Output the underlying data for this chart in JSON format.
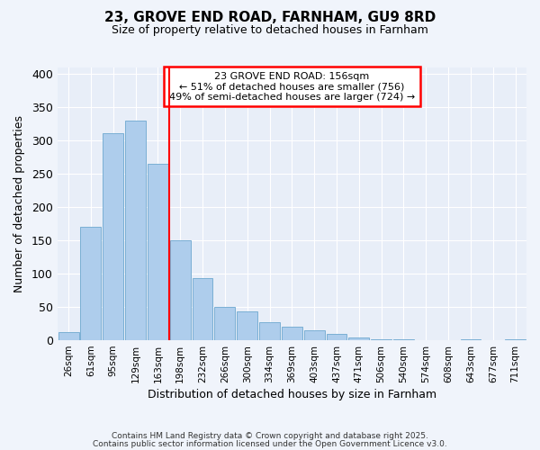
{
  "title": "23, GROVE END ROAD, FARNHAM, GU9 8RD",
  "subtitle": "Size of property relative to detached houses in Farnham",
  "xlabel": "Distribution of detached houses by size in Farnham",
  "ylabel": "Number of detached properties",
  "bin_labels": [
    "26sqm",
    "61sqm",
    "95sqm",
    "129sqm",
    "163sqm",
    "198sqm",
    "232sqm",
    "266sqm",
    "300sqm",
    "334sqm",
    "369sqm",
    "403sqm",
    "437sqm",
    "471sqm",
    "506sqm",
    "540sqm",
    "574sqm",
    "608sqm",
    "643sqm",
    "677sqm",
    "711sqm"
  ],
  "bar_values": [
    12,
    170,
    311,
    330,
    265,
    150,
    93,
    50,
    43,
    27,
    21,
    15,
    10,
    4,
    1,
    1,
    0,
    0,
    2,
    0,
    1
  ],
  "bar_color": "#aecdec",
  "bar_edge_color": "#7aafd4",
  "vline_color": "red",
  "vline_pos": 4.5,
  "ylim": [
    0,
    410
  ],
  "yticks": [
    0,
    50,
    100,
    150,
    200,
    250,
    300,
    350,
    400
  ],
  "annotation_title": "23 GROVE END ROAD: 156sqm",
  "annotation_line1": "← 51% of detached houses are smaller (756)",
  "annotation_line2": "49% of semi-detached houses are larger (724) →",
  "footer1": "Contains HM Land Registry data © Crown copyright and database right 2025.",
  "footer2": "Contains public sector information licensed under the Open Government Licence v3.0.",
  "bg_color": "#f0f4fb",
  "plot_bg_color": "#e8eef8"
}
